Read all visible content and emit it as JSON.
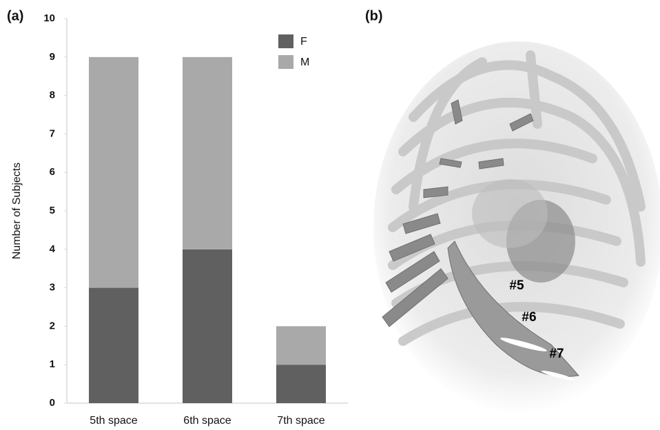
{
  "chart_data": {
    "type": "stacked_bar",
    "y_label": "Number of Subjects",
    "categories": [
      "5th space",
      "6th space",
      "7th space"
    ],
    "series": [
      {
        "name": "F",
        "color": "#606060",
        "values": [
          3,
          4,
          1
        ]
      },
      {
        "name": "M",
        "color": "#a9a9a9",
        "values": [
          6,
          5,
          1
        ]
      }
    ],
    "ylim": [
      0,
      10
    ],
    "yticks": [
      0,
      1,
      2,
      3,
      4,
      5,
      6,
      7,
      8,
      9,
      10
    ],
    "grid": false,
    "legend": "upper right"
  },
  "figure": {
    "panel_a_label": "(a)",
    "panel_b_label": "(b)",
    "annotations": [
      "#5",
      "#6",
      "#7"
    ]
  }
}
